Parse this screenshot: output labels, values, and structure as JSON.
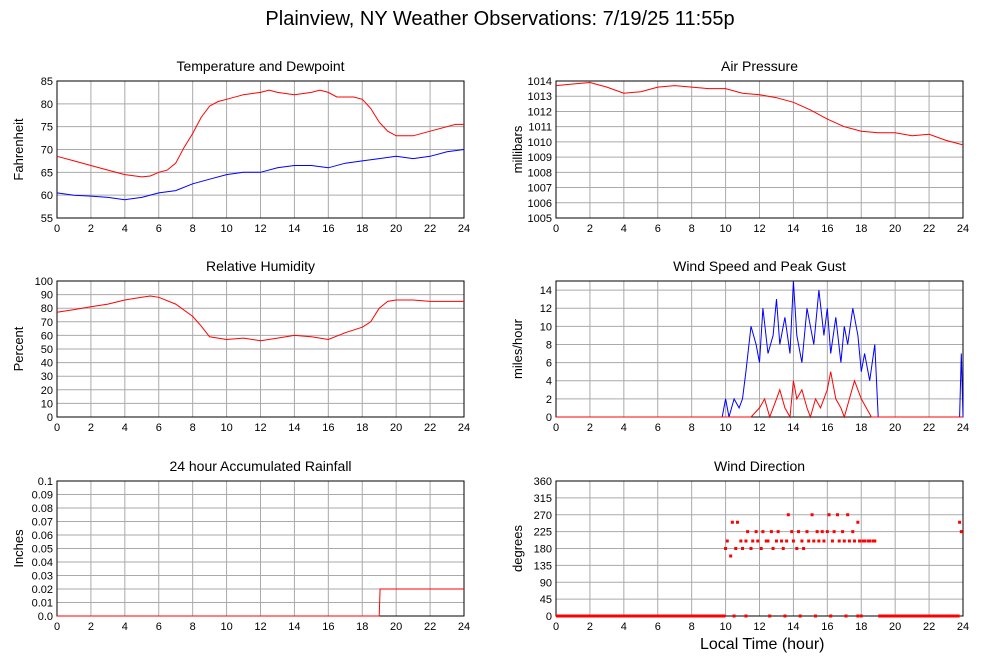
{
  "page": {
    "title": "Plainview, NY Weather Observations: 7/19/25 11:55p",
    "x_axis_title": "Local Time (hour)"
  },
  "colors": {
    "red": "#ff0000",
    "blue": "#0000ff",
    "grid": "#aaaaaa",
    "frame": "#000000"
  },
  "chart_data": [
    {
      "id": "temp",
      "type": "line",
      "title": "Temperature and Dewpoint",
      "xlabel": "",
      "ylabel": "Fahrenheit",
      "xlim": [
        0,
        24
      ],
      "ylim": [
        55,
        85
      ],
      "x_ticks": [
        0,
        2,
        4,
        6,
        8,
        10,
        12,
        14,
        16,
        18,
        20,
        22,
        24
      ],
      "y_ticks": [
        55,
        60,
        65,
        70,
        75,
        80,
        85
      ],
      "series": [
        {
          "color": "#ff0000",
          "x": [
            0,
            1,
            2,
            3,
            4,
            5,
            5.5,
            6,
            6.5,
            7,
            7.5,
            8,
            8.5,
            9,
            9.5,
            10,
            11,
            12,
            12.5,
            13,
            14,
            15,
            15.5,
            16,
            16.5,
            17,
            17.5,
            18,
            18.5,
            19,
            19.5,
            20,
            20.5,
            21,
            22,
            23,
            23.5,
            24
          ],
          "values": [
            68.5,
            67.5,
            66.5,
            65.5,
            64.5,
            64,
            64.2,
            65,
            65.5,
            67,
            70.5,
            73.5,
            77,
            79.5,
            80.5,
            81,
            82,
            82.5,
            83,
            82.5,
            82,
            82.5,
            83,
            82.5,
            81.5,
            81.5,
            81.5,
            81,
            79,
            76,
            74,
            73,
            73,
            73,
            74,
            75,
            75.5,
            75.5
          ]
        },
        {
          "color": "#0000ff",
          "x": [
            0,
            1,
            2,
            3,
            4,
            5,
            6,
            7,
            8,
            9,
            10,
            11,
            12,
            13,
            14,
            15,
            16,
            17,
            18,
            19,
            20,
            21,
            22,
            23,
            24
          ],
          "values": [
            60.5,
            60,
            59.8,
            59.5,
            59,
            59.5,
            60.5,
            61,
            62.5,
            63.5,
            64.5,
            65,
            65,
            66,
            66.5,
            66.5,
            66,
            67,
            67.5,
            68,
            68.5,
            68,
            68.5,
            69.5,
            70
          ]
        }
      ]
    },
    {
      "id": "pressure",
      "type": "line",
      "title": "Air Pressure",
      "xlabel": "",
      "ylabel": "millibars",
      "xlim": [
        0,
        24
      ],
      "ylim": [
        1005,
        1014
      ],
      "x_ticks": [
        0,
        2,
        4,
        6,
        8,
        10,
        12,
        14,
        16,
        18,
        20,
        22,
        24
      ],
      "y_ticks": [
        1005,
        1006,
        1007,
        1008,
        1009,
        1010,
        1011,
        1012,
        1013,
        1014
      ],
      "series": [
        {
          "color": "#ff0000",
          "x": [
            0,
            1,
            2,
            3,
            4,
            5,
            6,
            7,
            8,
            9,
            10,
            11,
            12,
            13,
            14,
            15,
            16,
            17,
            18,
            19,
            20,
            21,
            22,
            23,
            24
          ],
          "values": [
            1013.7,
            1013.8,
            1013.9,
            1013.6,
            1013.2,
            1013.3,
            1013.6,
            1013.7,
            1013.6,
            1013.5,
            1013.5,
            1013.2,
            1013.1,
            1012.9,
            1012.6,
            1012.1,
            1011.5,
            1011.0,
            1010.7,
            1010.6,
            1010.6,
            1010.4,
            1010.5,
            1010.1,
            1009.8
          ]
        }
      ]
    },
    {
      "id": "humidity",
      "type": "line",
      "title": "Relative Humidity",
      "xlabel": "",
      "ylabel": "Percent",
      "xlim": [
        0,
        24
      ],
      "ylim": [
        0,
        100
      ],
      "x_ticks": [
        0,
        2,
        4,
        6,
        8,
        10,
        12,
        14,
        16,
        18,
        20,
        22,
        24
      ],
      "y_ticks": [
        0,
        10,
        20,
        30,
        40,
        50,
        60,
        70,
        80,
        90,
        100
      ],
      "series": [
        {
          "color": "#ff0000",
          "x": [
            0,
            1,
            2,
            3,
            4,
            5,
            5.5,
            6,
            7,
            8,
            8.5,
            9,
            10,
            11,
            12,
            13,
            14,
            15,
            16,
            17,
            18,
            18.5,
            19,
            19.5,
            20,
            21,
            22,
            23,
            24
          ],
          "values": [
            77,
            79,
            81,
            83,
            86,
            88,
            89,
            88,
            83,
            74,
            67,
            59,
            57,
            58,
            56,
            58,
            60,
            59,
            57,
            62,
            66,
            70,
            80,
            85,
            86,
            86,
            85,
            85,
            85
          ]
        }
      ]
    },
    {
      "id": "wind",
      "type": "line",
      "title": "Wind Speed and Peak Gust",
      "xlabel": "",
      "ylabel": "miles/hour",
      "xlim": [
        0,
        24
      ],
      "ylim": [
        0,
        15
      ],
      "x_ticks": [
        0,
        2,
        4,
        6,
        8,
        10,
        12,
        14,
        16,
        18,
        20,
        22,
        24
      ],
      "y_ticks": [
        0,
        2,
        4,
        6,
        8,
        10,
        12,
        14
      ],
      "series": [
        {
          "color": "#0000ff",
          "x": [
            0,
            9.8,
            10,
            10.2,
            10.5,
            10.8,
            11,
            11.2,
            11.5,
            11.8,
            12,
            12.2,
            12.5,
            12.8,
            13,
            13.2,
            13.5,
            13.8,
            14,
            14.2,
            14.5,
            14.8,
            15,
            15.2,
            15.5,
            15.8,
            16,
            16.2,
            16.5,
            16.8,
            17,
            17.2,
            17.5,
            17.8,
            18,
            18.2,
            18.5,
            18.8,
            19,
            19.2,
            23.8,
            23.9,
            24
          ],
          "values": [
            0,
            0,
            2,
            0,
            2,
            1,
            2,
            5,
            10,
            8,
            6,
            12,
            7,
            9,
            13,
            8,
            11,
            7,
            15,
            9,
            6,
            12,
            10,
            8,
            14,
            9,
            12,
            7,
            11,
            6,
            10,
            8,
            12,
            9,
            5,
            7,
            4,
            8,
            0,
            0,
            0,
            7,
            0
          ]
        },
        {
          "color": "#ff0000",
          "x": [
            0,
            11.5,
            12,
            12.3,
            12.6,
            13,
            13.2,
            13.5,
            13.8,
            14,
            14.2,
            14.5,
            14.8,
            15,
            15.3,
            15.6,
            16,
            16.2,
            16.5,
            16.8,
            17,
            17.3,
            17.6,
            18,
            18.3,
            18.6,
            19,
            24
          ],
          "values": [
            0,
            0,
            1,
            2,
            0,
            2,
            3,
            1,
            0,
            4,
            2,
            3,
            1,
            0,
            2,
            1,
            3,
            5,
            2,
            1,
            0,
            2,
            4,
            2,
            1,
            0,
            0,
            0
          ]
        }
      ]
    },
    {
      "id": "rain",
      "type": "line",
      "title": "24 hour Accumulated Rainfall",
      "xlabel": "",
      "ylabel": "Inches",
      "xlim": [
        0,
        24
      ],
      "ylim": [
        0,
        0.1
      ],
      "x_ticks": [
        0,
        2,
        4,
        6,
        8,
        10,
        12,
        14,
        16,
        18,
        20,
        22,
        24
      ],
      "y_ticks": [
        0.0,
        0.01,
        0.02,
        0.03,
        0.04,
        0.05,
        0.06,
        0.07,
        0.08,
        0.09,
        0.1
      ],
      "y_tick_labels": [
        "0.0",
        "0.01",
        "0.02",
        "0.03",
        "0.04",
        "0.05",
        "0.06",
        "0.07",
        "0.08",
        "0.09",
        "0.1"
      ],
      "series": [
        {
          "color": "#ff0000",
          "x": [
            0,
            19.0,
            19.05,
            24
          ],
          "values": [
            0,
            0,
            0.02,
            0.02
          ]
        }
      ]
    },
    {
      "id": "direction",
      "type": "scatter",
      "title": "Wind Direction",
      "xlabel": "Local Time (hour)",
      "ylabel": "degrees",
      "xlim": [
        0,
        24
      ],
      "ylim": [
        0,
        360
      ],
      "x_ticks": [
        0,
        2,
        4,
        6,
        8,
        10,
        12,
        14,
        16,
        18,
        20,
        22,
        24
      ],
      "y_ticks": [
        0,
        45,
        90,
        135,
        180,
        225,
        270,
        315,
        360
      ],
      "series": [
        {
          "color": "#ff0000",
          "zero_runs": [
            [
              0,
              10.0
            ],
            [
              19.0,
              23.8
            ]
          ],
          "x": [
            10.0,
            10.1,
            10.3,
            10.4,
            10.6,
            10.7,
            10.9,
            11.0,
            11.2,
            11.3,
            11.5,
            11.6,
            11.8,
            11.9,
            12.1,
            12.2,
            12.4,
            12.5,
            12.7,
            12.8,
            13.0,
            13.1,
            13.3,
            13.4,
            13.6,
            13.7,
            13.9,
            14.0,
            14.2,
            14.3,
            14.5,
            14.6,
            14.8,
            14.9,
            15.1,
            15.2,
            15.4,
            15.5,
            15.7,
            15.8,
            16.0,
            16.1,
            16.3,
            16.4,
            16.6,
            16.7,
            16.9,
            17.0,
            17.2,
            17.3,
            17.5,
            17.6,
            17.8,
            17.9,
            18.1,
            18.2,
            18.4,
            18.5,
            18.7,
            18.8,
            23.8,
            23.9,
            10.5,
            11.2,
            12.6,
            13.5,
            14.4,
            15.3,
            16.2,
            17.1,
            17.8,
            18.0
          ],
          "values": [
            180,
            200,
            160,
            250,
            180,
            250,
            200,
            180,
            200,
            225,
            180,
            200,
            225,
            200,
            180,
            225,
            200,
            200,
            225,
            180,
            200,
            225,
            200,
            180,
            200,
            270,
            225,
            200,
            180,
            225,
            200,
            180,
            225,
            200,
            270,
            200,
            225,
            200,
            225,
            200,
            225,
            270,
            200,
            225,
            270,
            200,
            225,
            200,
            270,
            200,
            225,
            200,
            250,
            200,
            200,
            200,
            200,
            200,
            200,
            200,
            250,
            225,
            0,
            0,
            0,
            0,
            0,
            0,
            0,
            0,
            0,
            0
          ]
        }
      ]
    }
  ]
}
